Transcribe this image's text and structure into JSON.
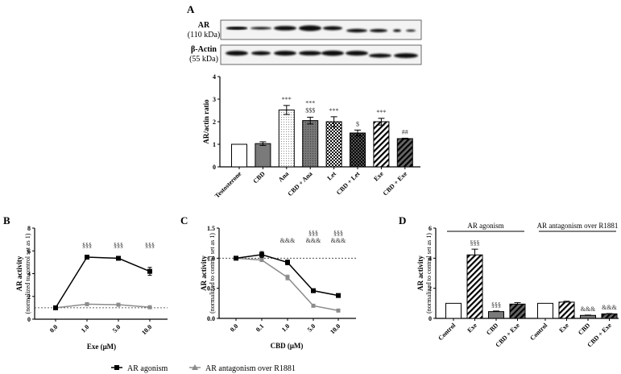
{
  "figure": {
    "panels": [
      "A",
      "B",
      "C",
      "D"
    ],
    "western_blot": {
      "rows": [
        {
          "label": "AR",
          "sublabel": "(110 kDa)"
        },
        {
          "label": "β-Actin",
          "sublabel": "(55 kDa)"
        }
      ]
    },
    "legend": {
      "items": [
        {
          "label": "AR agonism",
          "color": "#000000",
          "marker": "square"
        },
        {
          "label": "AR antagonism over R1881",
          "color": "#8c8c8c",
          "marker": "triangle"
        }
      ]
    }
  },
  "chart_data": [
    {
      "panel": "A",
      "type": "bar",
      "title": "",
      "xlabel": "",
      "ylabel": "AR/actin ratio",
      "ylim": [
        0,
        4
      ],
      "yticks": [
        0,
        1,
        2,
        3,
        4
      ],
      "categories": [
        "Testosterone",
        "CBD",
        "Ana",
        "CBD + Ana",
        "Let",
        "CBD + Let",
        "Exe",
        "CBD + Exe"
      ],
      "values": [
        1.0,
        1.03,
        2.52,
        2.05,
        2.0,
        1.5,
        2.0,
        1.25
      ],
      "errors": [
        0.0,
        0.08,
        0.2,
        0.15,
        0.22,
        0.13,
        0.15,
        0.02
      ],
      "patterns": [
        "white",
        "gray",
        "dots",
        "dark-dots",
        "checker",
        "dark-checker",
        "diag-stripes",
        "dark-diag-stripes"
      ],
      "annotations": [
        "",
        "",
        "***",
        "***\n$$$",
        "***",
        "$",
        "***",
        "##"
      ]
    },
    {
      "panel": "B",
      "type": "line",
      "xlabel": "Exe (μM)",
      "ylabel": "AR activity",
      "ylabel2": "(normalized to control set as 1)",
      "ylim": [
        0,
        8
      ],
      "yticks": [
        0,
        2,
        4,
        6,
        8
      ],
      "x": [
        "0.0",
        "1.0",
        "5.0",
        "10.0"
      ],
      "reference_line": 1,
      "series": [
        {
          "name": "AR agonism",
          "values": [
            1.0,
            5.45,
            5.35,
            4.2
          ],
          "errors": [
            0.05,
            0.08,
            0.08,
            0.35
          ],
          "color": "#000000"
        },
        {
          "name": "AR antagonism over R1881",
          "values": [
            1.0,
            1.32,
            1.27,
            1.05
          ],
          "errors": [
            0.03,
            0.08,
            0.06,
            0.05
          ],
          "color": "#8c8c8c"
        }
      ],
      "annotations": [
        "",
        "§§§",
        "§§§",
        "§§§"
      ]
    },
    {
      "panel": "C",
      "type": "line",
      "xlabel": "CBD (μM)",
      "ylabel": "AR activity",
      "ylabel2": "(normalized to control set as 1)",
      "ylim": [
        0,
        1.5
      ],
      "yticks": [
        "0.0",
        "0.5",
        "1.0",
        "1.5"
      ],
      "x": [
        "0.0",
        "0.1",
        "1.0",
        "5.0",
        "10.0"
      ],
      "reference_line": 1,
      "series": [
        {
          "name": "AR agonism",
          "values": [
            1.0,
            1.06,
            0.93,
            0.46,
            0.38
          ],
          "errors": [
            0.01,
            0.05,
            0.04,
            0.03,
            0.02
          ],
          "color": "#000000"
        },
        {
          "name": "AR antagonism over R1881",
          "values": [
            1.0,
            0.97,
            0.68,
            0.21,
            0.13
          ],
          "errors": [
            0.01,
            0.02,
            0.04,
            0.02,
            0.01
          ],
          "color": "#8c8c8c"
        }
      ],
      "annotations": [
        "",
        "",
        "&&&",
        "§§§\n&&&",
        "§§§\n&&&"
      ]
    },
    {
      "panel": "D",
      "type": "bar",
      "ylabel": "AR activity",
      "ylabel2": "(normalized to control set as 1)",
      "ylim": [
        0,
        6
      ],
      "yticks": [
        0,
        2,
        4,
        6
      ],
      "groups": [
        {
          "name": "AR agonism",
          "categories": [
            "Control",
            "Exe",
            "CBD",
            "CBD + Exe"
          ],
          "values": [
            1.0,
            4.22,
            0.45,
            0.95
          ],
          "errors": [
            0.0,
            0.38,
            0.04,
            0.1
          ],
          "annotations": [
            "",
            "§§§",
            "§§§",
            ""
          ]
        },
        {
          "name": "AR antagonism over R1881",
          "categories": [
            "Control",
            "Exe",
            "CBD",
            "CBD + Exe"
          ],
          "values": [
            1.0,
            1.08,
            0.2,
            0.3
          ],
          "errors": [
            0.0,
            0.06,
            0.02,
            0.02
          ],
          "annotations": [
            "",
            "",
            "&&&",
            "&&&"
          ]
        }
      ],
      "patterns": [
        "white",
        "diag-stripes",
        "gray",
        "dark-diag-stripes"
      ]
    }
  ]
}
